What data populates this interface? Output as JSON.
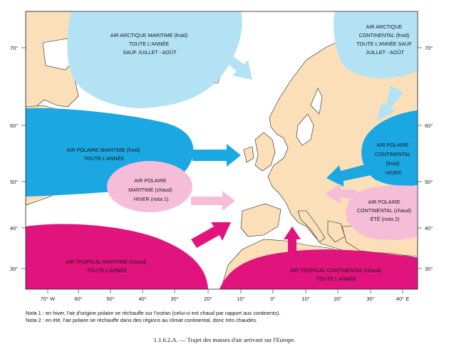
{
  "colors": {
    "land": "#fadfb9",
    "sea": "#ffffff",
    "arctic": "#b3e2f5",
    "polar_maritime": "#1aa7e2",
    "polar_warm": "#f6bdd9",
    "tropical": "#e1137c",
    "coast": "#222222"
  },
  "masses": {
    "arctic_maritime": [
      "AIR ARCTIQUE MARITIME (froid)",
      "TOUTE L'ANNÉE",
      "SAUF JUILLET - AOÛT"
    ],
    "arctic_continental": [
      "AIR ARCTIQUE",
      "CONTINENTAL (froid)",
      "TOUTE L'ANNÉE SAUF",
      "JUILLET - AOÛT"
    ],
    "polar_maritime_cold": [
      "AIR POLAIRE MARITIME (froid)",
      "TOUTE L'ANNÉE"
    ],
    "polar_continental_cold": [
      "AIR POLAIRE",
      "CONTINENTAL",
      "(froid)",
      "HIVER"
    ],
    "polar_maritime_warm": [
      "AIR POLAIRE",
      "MARITIME (chaud)",
      "HIVER (nota 1)"
    ],
    "polar_continental_warm": [
      "AIR POLAIRE",
      "CONTINENTAL (chaud)",
      "ÉTÉ (nota 2)"
    ],
    "tropical_maritime": [
      "AIR TROPICAL MARITIME (chaud)",
      "TOUTE L'ANNÉE"
    ],
    "tropical_continental": [
      "AIR TROPICAL CONTINENTAL (chaud)",
      "TOUTE L'ANNÉE"
    ]
  },
  "axes": {
    "lat_labels": [
      "70°",
      "60°",
      "50°",
      "40°",
      "30°"
    ],
    "lon_labels": [
      "70° W",
      "60°",
      "50°",
      "40°",
      "30°",
      "20°",
      "10°",
      "0°",
      "10°",
      "20°",
      "30°",
      "40° E"
    ]
  },
  "notes": [
    "Nota 1 : en hiver, l'air d'origine polaire se réchauffe sur l'océan (celui-ci est chaud par rapport aux continents).",
    "Nota 2 : en été, l'air polaire se réchauffe dans des régions au climat continental, donc très chaudes."
  ],
  "caption": "1.1.6.2.A. — Trajet des masses d'air arrivant sur l'Europe."
}
